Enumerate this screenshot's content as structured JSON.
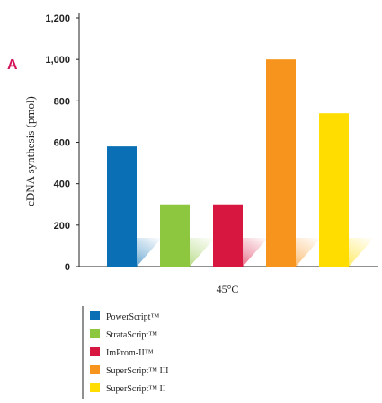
{
  "panel_label": "A",
  "chart_data": {
    "type": "bar",
    "title": "",
    "xlabel": "45°C",
    "ylabel": "cDNA synthesis (pmol)",
    "ylim": [
      0,
      1200
    ],
    "yticks": [
      "0",
      "200",
      "400",
      "600",
      "800",
      "1,000",
      "1,200"
    ],
    "ytick_values": [
      0,
      200,
      400,
      600,
      800,
      1000,
      1200
    ],
    "grid": false,
    "legend_position": "bottom-left",
    "series": [
      {
        "name": "PowerScript™",
        "value": 580,
        "color": "#0a6fb4"
      },
      {
        "name": "StrataScript™",
        "value": 300,
        "color": "#8dc63f"
      },
      {
        "name": "ImProm-II™",
        "value": 300,
        "color": "#d7173f"
      },
      {
        "name": "SuperScript™ III",
        "value": 1000,
        "color": "#f7941d"
      },
      {
        "name": "SuperScript™ II",
        "value": 740,
        "color": "#ffdd00"
      }
    ]
  }
}
